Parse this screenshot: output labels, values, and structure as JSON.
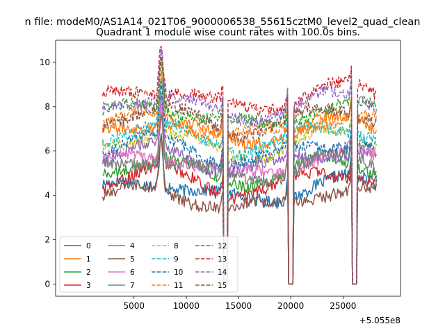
{
  "chart_data": {
    "type": "line",
    "suptitle": "n file: modeM0/AS1A14_021T06_9000006538_55615cztM0_level2_quad_clean",
    "title": "Quadrant 1 module wise count rates with 100.0s bins.",
    "xlabel": "",
    "ylabel": "",
    "xlim": [
      -2500,
      30500
    ],
    "ylim": [
      -0.55,
      11.0
    ],
    "x_offset_label": "+5.055e8",
    "x_ticks": [
      5000,
      10000,
      15000,
      20000,
      25000
    ],
    "x_tick_labels": [
      "5000",
      "10000",
      "15000",
      "20000",
      "25000"
    ],
    "y_ticks": [
      0,
      2,
      4,
      6,
      8,
      10
    ],
    "y_tick_labels": [
      "0",
      "2",
      "4",
      "6",
      "8",
      "10"
    ],
    "x_start": 2000,
    "x_end": 28200,
    "bin_size": 100,
    "gaps": [
      [
        13600,
        13900
      ],
      [
        19800,
        20250
      ],
      [
        25900,
        26350
      ]
    ],
    "peak_center": 7600,
    "legend_location": "lower left",
    "legend_columns": 4,
    "series": [
      {
        "name": "0",
        "color": "#1f77b4",
        "dash": "solid",
        "base": 4.2
      },
      {
        "name": "1",
        "color": "#ff7f0e",
        "dash": "solid",
        "base": 6.9
      },
      {
        "name": "2",
        "color": "#2ca02c",
        "dash": "solid",
        "base": 5.1
      },
      {
        "name": "3",
        "color": "#d62728",
        "dash": "solid",
        "base": 4.6
      },
      {
        "name": "4",
        "color": "#9467bd",
        "dash": "solid",
        "base": 5.6
      },
      {
        "name": "5",
        "color": "#8c564b",
        "dash": "solid",
        "base": 3.8
      },
      {
        "name": "6",
        "color": "#e377c2",
        "dash": "solid",
        "base": 5.4
      },
      {
        "name": "7",
        "color": "#7f7f7f",
        "dash": "solid",
        "base": 5.2
      },
      {
        "name": "8",
        "color": "#bcbd22",
        "dash": "dashed",
        "base": 6.3
      },
      {
        "name": "9",
        "color": "#17becf",
        "dash": "dashed",
        "base": 6.6
      },
      {
        "name": "10",
        "color": "#1f77b4",
        "dash": "dashed",
        "base": 6.0
      },
      {
        "name": "11",
        "color": "#ff7f0e",
        "dash": "dashed",
        "base": 7.1
      },
      {
        "name": "12",
        "color": "#2ca02c",
        "dash": "dashed",
        "base": 7.6
      },
      {
        "name": "13",
        "color": "#d62728",
        "dash": "dashed",
        "base": 8.4
      },
      {
        "name": "14",
        "color": "#9467bd",
        "dash": "dashed",
        "base": 8.0
      },
      {
        "name": "15",
        "color": "#8c564b",
        "dash": "dashed",
        "base": 7.4
      }
    ]
  }
}
